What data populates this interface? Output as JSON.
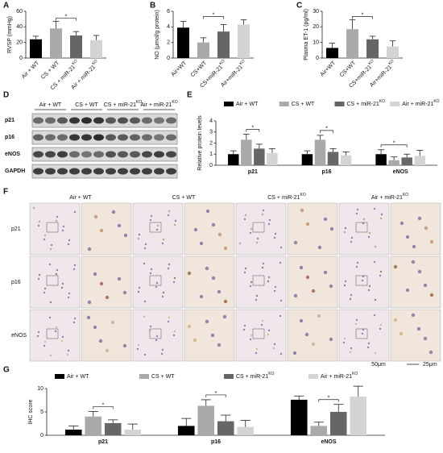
{
  "chart_data": [
    {
      "type": "bar",
      "panel_label": "A",
      "y_label": "RVSP (mmHg)",
      "categories": [
        "Air + WT",
        "CS + WT",
        "CS + miR-21KO",
        "Air + miR-21KO"
      ],
      "values": [
        24,
        38,
        29,
        23
      ],
      "errors": [
        4,
        9,
        5,
        6
      ],
      "colors": [
        "#000000",
        "#a9a9a9",
        "#666666",
        "#d4d4d4"
      ],
      "ylim": [
        0,
        60
      ],
      "yticks": [
        0,
        20,
        40,
        60
      ],
      "significance": [
        {
          "text": "*",
          "between": [
            "CS + WT",
            "CS + miR-21KO"
          ]
        }
      ]
    },
    {
      "type": "bar",
      "panel_label": "B",
      "y_label": "NO (μmol/g protein)",
      "categories": [
        "Air+WT",
        "CS+WT",
        "CS+miR-21KO",
        "Air+miR-21KO"
      ],
      "values": [
        3.9,
        2.0,
        3.4,
        4.3
      ],
      "errors": [
        0.8,
        0.6,
        0.9,
        0.6
      ],
      "colors": [
        "#000000",
        "#a9a9a9",
        "#666666",
        "#d4d4d4"
      ],
      "ylim": [
        0,
        6
      ],
      "yticks": [
        0,
        2,
        4,
        6
      ],
      "significance": [
        {
          "text": "*",
          "between": [
            "CS+WT",
            "CS+miR-21KO"
          ]
        }
      ]
    },
    {
      "type": "bar",
      "panel_label": "C",
      "y_label": "Plasma ET-1 (pg/ml)",
      "categories": [
        "Air+WT",
        "CS+WT",
        "CS+miR-21KO",
        "Air+miR-21KO"
      ],
      "values": [
        6.5,
        18.5,
        12,
        7.5
      ],
      "errors": [
        3,
        6,
        2,
        3.5
      ],
      "colors": [
        "#000000",
        "#a9a9a9",
        "#666666",
        "#d4d4d4"
      ],
      "ylim": [
        0,
        30
      ],
      "yticks": [
        0,
        10,
        20,
        30
      ],
      "significance": [
        {
          "text": "*",
          "between": [
            "CS+WT",
            "CS+miR-21KO"
          ]
        }
      ]
    },
    {
      "type": "bar",
      "panel_label": "E",
      "y_label": "Relative protein levels",
      "categories": [
        "p21",
        "p16",
        "eNOS"
      ],
      "series": [
        {
          "name": "Air + WT",
          "color": "#000000",
          "values": [
            1,
            1,
            1
          ],
          "errors": [
            0.3,
            0.3,
            0.4
          ]
        },
        {
          "name": "CS + WT",
          "color": "#a9a9a9",
          "values": [
            2.3,
            2.3,
            0.45
          ],
          "errors": [
            0.5,
            0.4,
            0.3
          ]
        },
        {
          "name": "CS + miR-21KO",
          "color": "#666666",
          "values": [
            1.5,
            1.2,
            0.7
          ],
          "errors": [
            0.4,
            0.3,
            0.3
          ]
        },
        {
          "name": "Air + miR-21KO",
          "color": "#d4d4d4",
          "values": [
            1.1,
            0.9,
            0.85
          ],
          "errors": [
            0.4,
            0.3,
            0.5
          ]
        }
      ],
      "ylim": [
        0,
        4
      ],
      "yticks": [
        0,
        1,
        2,
        3,
        4
      ],
      "significance": [
        {
          "text": "*",
          "category": "p21",
          "between": [
            "CS + WT",
            "CS + miR-21KO"
          ]
        },
        {
          "text": "*",
          "category": "p16",
          "between": [
            "CS + WT",
            "CS + miR-21KO"
          ]
        },
        {
          "text": "*",
          "category": "eNOS",
          "between": [
            "Air + WT",
            "CS + miR-21KO"
          ]
        }
      ]
    },
    {
      "type": "bar",
      "panel_label": "G",
      "y_label": "IHC score",
      "categories": [
        "p21",
        "p16",
        "eNOS"
      ],
      "series": [
        {
          "name": "Air + WT",
          "color": "#000000",
          "values": [
            1.2,
            2,
            7.6
          ],
          "errors": [
            0.8,
            1.6,
            0.8
          ]
        },
        {
          "name": "CS + WT",
          "color": "#a9a9a9",
          "values": [
            4,
            6.3,
            2
          ],
          "errors": [
            1.1,
            1.3,
            0.8
          ]
        },
        {
          "name": "CS + miR-21KO",
          "color": "#666666",
          "values": [
            2.6,
            3,
            5
          ],
          "errors": [
            0.7,
            1.3,
            1.6
          ]
        },
        {
          "name": "Air + miR-21KO",
          "color": "#d4d4d4",
          "values": [
            1.2,
            1.8,
            8.3
          ],
          "errors": [
            1.2,
            1.4,
            2.2
          ]
        }
      ],
      "ylim": [
        0,
        10
      ],
      "yticks": [
        0,
        5,
        10
      ],
      "significance": [
        {
          "text": "*",
          "category": "p21",
          "between": [
            "CS + WT",
            "CS + miR-21KO"
          ]
        },
        {
          "text": "*",
          "category": "p16",
          "between": [
            "CS + WT",
            "CS + miR-21KO"
          ]
        },
        {
          "text": "*",
          "category": "eNOS",
          "between": [
            "CS + WT",
            "CS + miR-21KO"
          ]
        }
      ]
    }
  ],
  "blot": {
    "panel_label": "D",
    "groups": [
      "Air + WT",
      "CS + WT",
      "CS + miR-21KO",
      "Air + miR-21KO"
    ],
    "rows": [
      "p21",
      "p16",
      "eNOS",
      "GAPDH"
    ]
  },
  "histology": {
    "panel_label": "F",
    "groups": [
      "Air + WT",
      "CS + WT",
      "CS + miR-21KO",
      "Air + miR-21KO"
    ],
    "rows": [
      "p21",
      "p16",
      "eNOS"
    ],
    "scale_labels": [
      "50μm",
      "25μm"
    ]
  }
}
